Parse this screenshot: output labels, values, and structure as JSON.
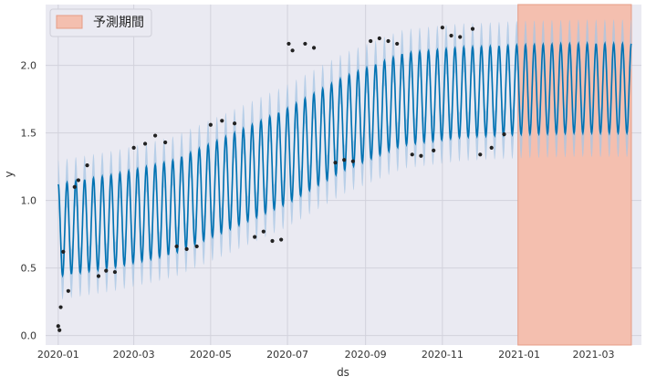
{
  "chart_data": {
    "type": "line",
    "xlabel": "ds",
    "ylabel": "y",
    "x_range": [
      "2019-12-22",
      "2021-04-08"
    ],
    "ylim": [
      -0.07,
      2.45
    ],
    "x_ticks": [
      {
        "date": "2020-01-01",
        "label": "2020-01"
      },
      {
        "date": "2020-03-01",
        "label": "2020-03"
      },
      {
        "date": "2020-05-01",
        "label": "2020-05"
      },
      {
        "date": "2020-07-01",
        "label": "2020-07"
      },
      {
        "date": "2020-09-01",
        "label": "2020-09"
      },
      {
        "date": "2020-11-01",
        "label": "2020-11"
      },
      {
        "date": "2021-01-01",
        "label": "2021-01"
      },
      {
        "date": "2021-03-01",
        "label": "2021-03"
      }
    ],
    "y_ticks": [
      {
        "value": 0.0,
        "label": "0.0"
      },
      {
        "value": 0.5,
        "label": "0.5"
      },
      {
        "value": 1.0,
        "label": "1.0"
      },
      {
        "value": 1.5,
        "label": "1.5"
      },
      {
        "value": 2.0,
        "label": "2.0"
      }
    ],
    "grid": true,
    "legend": {
      "position": "top-left",
      "entries": [
        {
          "label": "予測期間",
          "color": "#f4bfaf"
        }
      ]
    },
    "forecast_period": {
      "start": "2020-12-31",
      "end": "2021-03-31",
      "label": "予測期間"
    },
    "series": [
      {
        "kind": "observed_points",
        "color": "#222222",
        "points": [
          {
            "x": "2020-01-01",
            "y": 0.07
          },
          {
            "x": "2020-01-02",
            "y": 0.04
          },
          {
            "x": "2020-01-03",
            "y": 0.21
          },
          {
            "x": "2020-01-05",
            "y": 0.62
          },
          {
            "x": "2020-01-09",
            "y": 0.33
          },
          {
            "x": "2020-01-14",
            "y": 1.1
          },
          {
            "x": "2020-01-17",
            "y": 1.15
          },
          {
            "x": "2020-01-24",
            "y": 1.26
          },
          {
            "x": "2020-02-02",
            "y": 0.44
          },
          {
            "x": "2020-02-08",
            "y": 0.48
          },
          {
            "x": "2020-02-15",
            "y": 0.47
          },
          {
            "x": "2020-03-01",
            "y": 1.39
          },
          {
            "x": "2020-03-10",
            "y": 1.42
          },
          {
            "x": "2020-03-18",
            "y": 1.48
          },
          {
            "x": "2020-03-26",
            "y": 1.43
          },
          {
            "x": "2020-04-04",
            "y": 0.66
          },
          {
            "x": "2020-04-12",
            "y": 0.64
          },
          {
            "x": "2020-04-20",
            "y": 0.66
          },
          {
            "x": "2020-05-01",
            "y": 1.56
          },
          {
            "x": "2020-05-10",
            "y": 1.59
          },
          {
            "x": "2020-05-20",
            "y": 1.57
          },
          {
            "x": "2020-06-05",
            "y": 0.73
          },
          {
            "x": "2020-06-12",
            "y": 0.77
          },
          {
            "x": "2020-06-19",
            "y": 0.7
          },
          {
            "x": "2020-06-26",
            "y": 0.71
          },
          {
            "x": "2020-07-02",
            "y": 2.16
          },
          {
            "x": "2020-07-05",
            "y": 2.11
          },
          {
            "x": "2020-07-15",
            "y": 2.16
          },
          {
            "x": "2020-07-22",
            "y": 2.13
          },
          {
            "x": "2020-08-08",
            "y": 1.28
          },
          {
            "x": "2020-08-15",
            "y": 1.3
          },
          {
            "x": "2020-08-22",
            "y": 1.29
          },
          {
            "x": "2020-09-05",
            "y": 2.18
          },
          {
            "x": "2020-09-12",
            "y": 2.2
          },
          {
            "x": "2020-09-19",
            "y": 2.18
          },
          {
            "x": "2020-09-26",
            "y": 2.16
          },
          {
            "x": "2020-10-08",
            "y": 1.34
          },
          {
            "x": "2020-10-15",
            "y": 1.33
          },
          {
            "x": "2020-10-25",
            "y": 1.37
          },
          {
            "x": "2020-11-01",
            "y": 2.28
          },
          {
            "x": "2020-11-08",
            "y": 2.22
          },
          {
            "x": "2020-11-15",
            "y": 2.21
          },
          {
            "x": "2020-11-25",
            "y": 2.27
          },
          {
            "x": "2020-12-01",
            "y": 1.34
          },
          {
            "x": "2020-12-10",
            "y": 1.39
          },
          {
            "x": "2020-12-20",
            "y": 1.49
          }
        ]
      },
      {
        "kind": "forecast_line",
        "color": "#0072b2",
        "band_color": "#a7c6e4",
        "interval_half_width": 0.18,
        "period_days": 7,
        "points": [
          {
            "x": "2020-01-01",
            "y": 0.78
          },
          {
            "x": "2020-02-15",
            "y": 0.85
          },
          {
            "x": "2020-04-01",
            "y": 0.95
          },
          {
            "x": "2020-05-15",
            "y": 1.13
          },
          {
            "x": "2020-07-01",
            "y": 1.33
          },
          {
            "x": "2020-08-15",
            "y": 1.57
          },
          {
            "x": "2020-10-01",
            "y": 1.75
          },
          {
            "x": "2020-11-15",
            "y": 1.8
          },
          {
            "x": "2021-01-01",
            "y": 1.82
          },
          {
            "x": "2021-02-15",
            "y": 1.83
          },
          {
            "x": "2021-03-31",
            "y": 1.83
          }
        ],
        "amplitude": [
          {
            "x": "2020-01-01",
            "y": 0.34
          },
          {
            "x": "2020-07-01",
            "y": 0.35
          },
          {
            "x": "2020-12-01",
            "y": 0.33
          },
          {
            "x": "2021-03-31",
            "y": 0.33
          }
        ]
      }
    ]
  }
}
